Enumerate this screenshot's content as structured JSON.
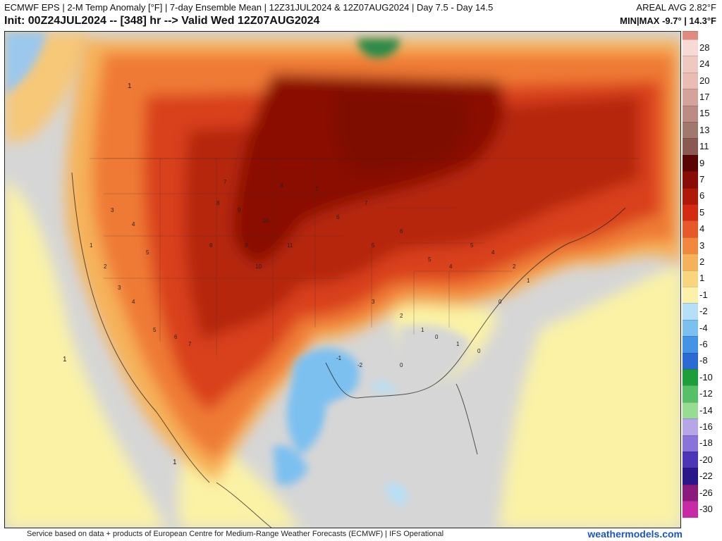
{
  "header": {
    "title_line1": "ECMWF EPS | 2-M Temp Anomaly [°F] | 7-day Ensemble Mean | 12Z31JUL2024 & 12Z07AUG2024 | Day 7.5 - Day 14.5",
    "title_line2": "Init: 00Z24JUL2024 -- [348] hr --> Valid Wed 12Z07AUG2024",
    "areal_avg": "AREAL AVG 2.82°F",
    "min_max": "MIN|MAX -9.7° | 14.3°F"
  },
  "footer": {
    "credit": "Service based on data + products of European Centre for Medium-Range Weather Forecasts (ECMWF) | IFS Operational",
    "brand": "weathermodels.com"
  },
  "colors": {
    "ocean_gray": "#d6d6d6",
    "near_zero": "#fbf2a6",
    "warm_low": "#f7c26a",
    "warm_mid": "#ef7a36",
    "warm_high": "#d9401e",
    "hot": "#b52510",
    "hottest": "#7e0d06",
    "cool": "#6ab2ea",
    "brand_blue": "#1a55c8"
  },
  "legend": [
    {
      "label": "28",
      "color": "#f7dad6"
    },
    {
      "label": "24",
      "color": "#f0c8c2"
    },
    {
      "label": "20",
      "color": "#e9bcb4"
    },
    {
      "label": "17",
      "color": "#d4a49c"
    },
    {
      "label": "15",
      "color": "#bc8c84"
    },
    {
      "label": "13",
      "color": "#a0786e"
    },
    {
      "label": "11",
      "color": "#8a5a52"
    },
    {
      "label": "9",
      "color": "#5a0503"
    },
    {
      "label": "7",
      "color": "#8a0c06"
    },
    {
      "label": "6",
      "color": "#b01808"
    },
    {
      "label": "5",
      "color": "#d42a12"
    },
    {
      "label": "4",
      "color": "#e9582a"
    },
    {
      "label": "3",
      "color": "#f2883e"
    },
    {
      "label": "2",
      "color": "#f6b25a"
    },
    {
      "label": "1",
      "color": "#f9d67e"
    },
    {
      "label": "-1",
      "color": "#fbf1a8"
    },
    {
      "label": "-2",
      "color": "#b6e0f6"
    },
    {
      "label": "-4",
      "color": "#7cc0f0"
    },
    {
      "label": "-6",
      "color": "#4494e6"
    },
    {
      "label": "-8",
      "color": "#2a6ad2"
    },
    {
      "label": "-10",
      "color": "#1e9e3a"
    },
    {
      "label": "-12",
      "color": "#56c068"
    },
    {
      "label": "-14",
      "color": "#96dc92"
    },
    {
      "label": "-16",
      "color": "#b6a6e8"
    },
    {
      "label": "-18",
      "color": "#8a74d8"
    },
    {
      "label": "-20",
      "color": "#4c36b6"
    },
    {
      "label": "-22",
      "color": "#2a188a"
    },
    {
      "label": "-26",
      "color": "#8a1a7c"
    },
    {
      "label": "-30",
      "color": "#c82aa6"
    }
  ],
  "legend_top_swatch": "#e08a80",
  "station_values": [
    {
      "v": "8"
    },
    {
      "v": "9"
    },
    {
      "v": "10"
    },
    {
      "v": "11"
    },
    {
      "v": "9"
    },
    {
      "v": "8"
    },
    {
      "v": "10"
    },
    {
      "v": "7"
    },
    {
      "v": "8"
    },
    {
      "v": "7"
    },
    {
      "v": "6"
    },
    {
      "v": "7"
    },
    {
      "v": "5"
    },
    {
      "v": "6"
    },
    {
      "v": "5"
    },
    {
      "v": "4"
    },
    {
      "v": "5"
    },
    {
      "v": "4"
    },
    {
      "v": "3"
    },
    {
      "v": "2"
    },
    {
      "v": "1"
    },
    {
      "v": "0"
    },
    {
      "v": "1"
    },
    {
      "v": "0"
    },
    {
      "v": "-1"
    },
    {
      "v": "-2"
    },
    {
      "v": "0"
    },
    {
      "v": "1"
    },
    {
      "v": "2"
    },
    {
      "v": "3"
    },
    {
      "v": "4"
    },
    {
      "v": "5"
    },
    {
      "v": "6"
    },
    {
      "v": "7"
    },
    {
      "v": "3"
    },
    {
      "v": "4"
    },
    {
      "v": "5"
    },
    {
      "v": "2"
    },
    {
      "v": "1"
    },
    {
      "v": "0"
    }
  ],
  "map_labels": [
    {
      "v": "1"
    },
    {
      "v": "1"
    },
    {
      "v": "1"
    }
  ]
}
